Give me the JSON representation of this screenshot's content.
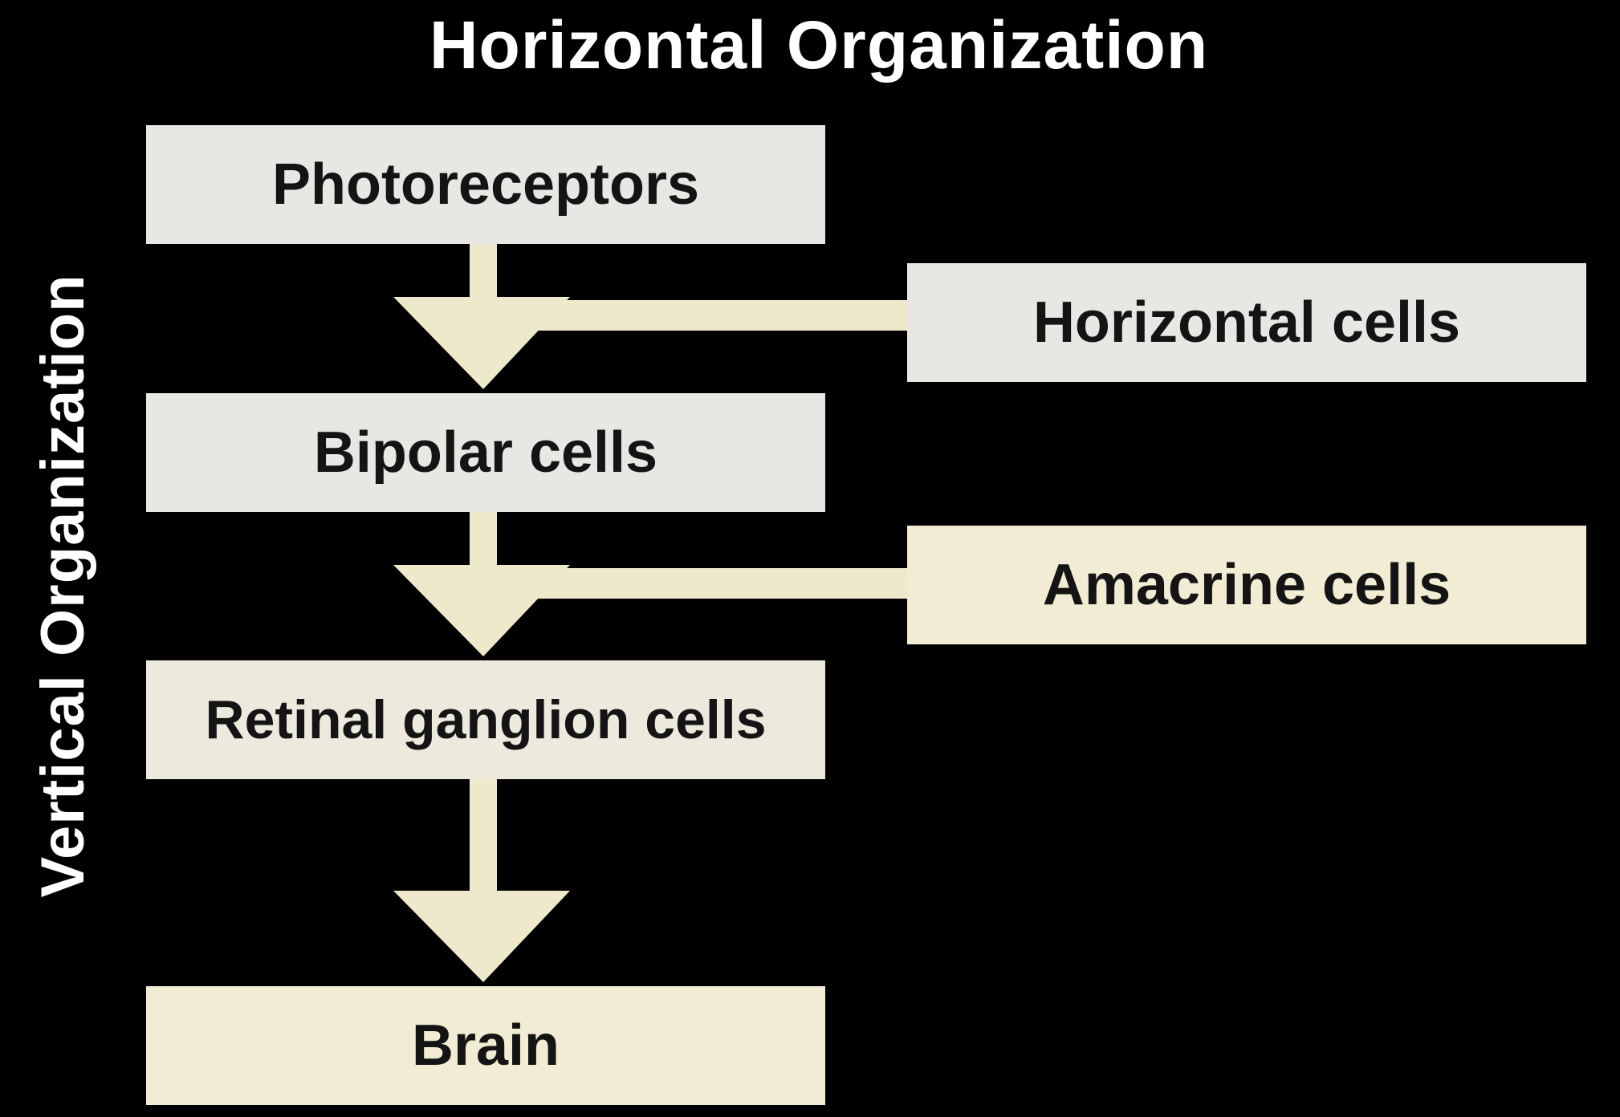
{
  "diagram": {
    "title": "Horizontal Organization",
    "side_title": "Vertical Organization",
    "vertical_chain": [
      "Photoreceptors",
      "Bipolar cells",
      "Retinal ganglion cells",
      "Brain"
    ],
    "lateral_cells": [
      "Horizontal cells",
      "Amacrine cells"
    ],
    "colors": {
      "background": "#000000",
      "text": "#ffffff",
      "box_text": "#141414",
      "arrow": "#efe9cb",
      "box_gray": "#e8e7e3",
      "box_cream": "#f1ecd3"
    }
  }
}
